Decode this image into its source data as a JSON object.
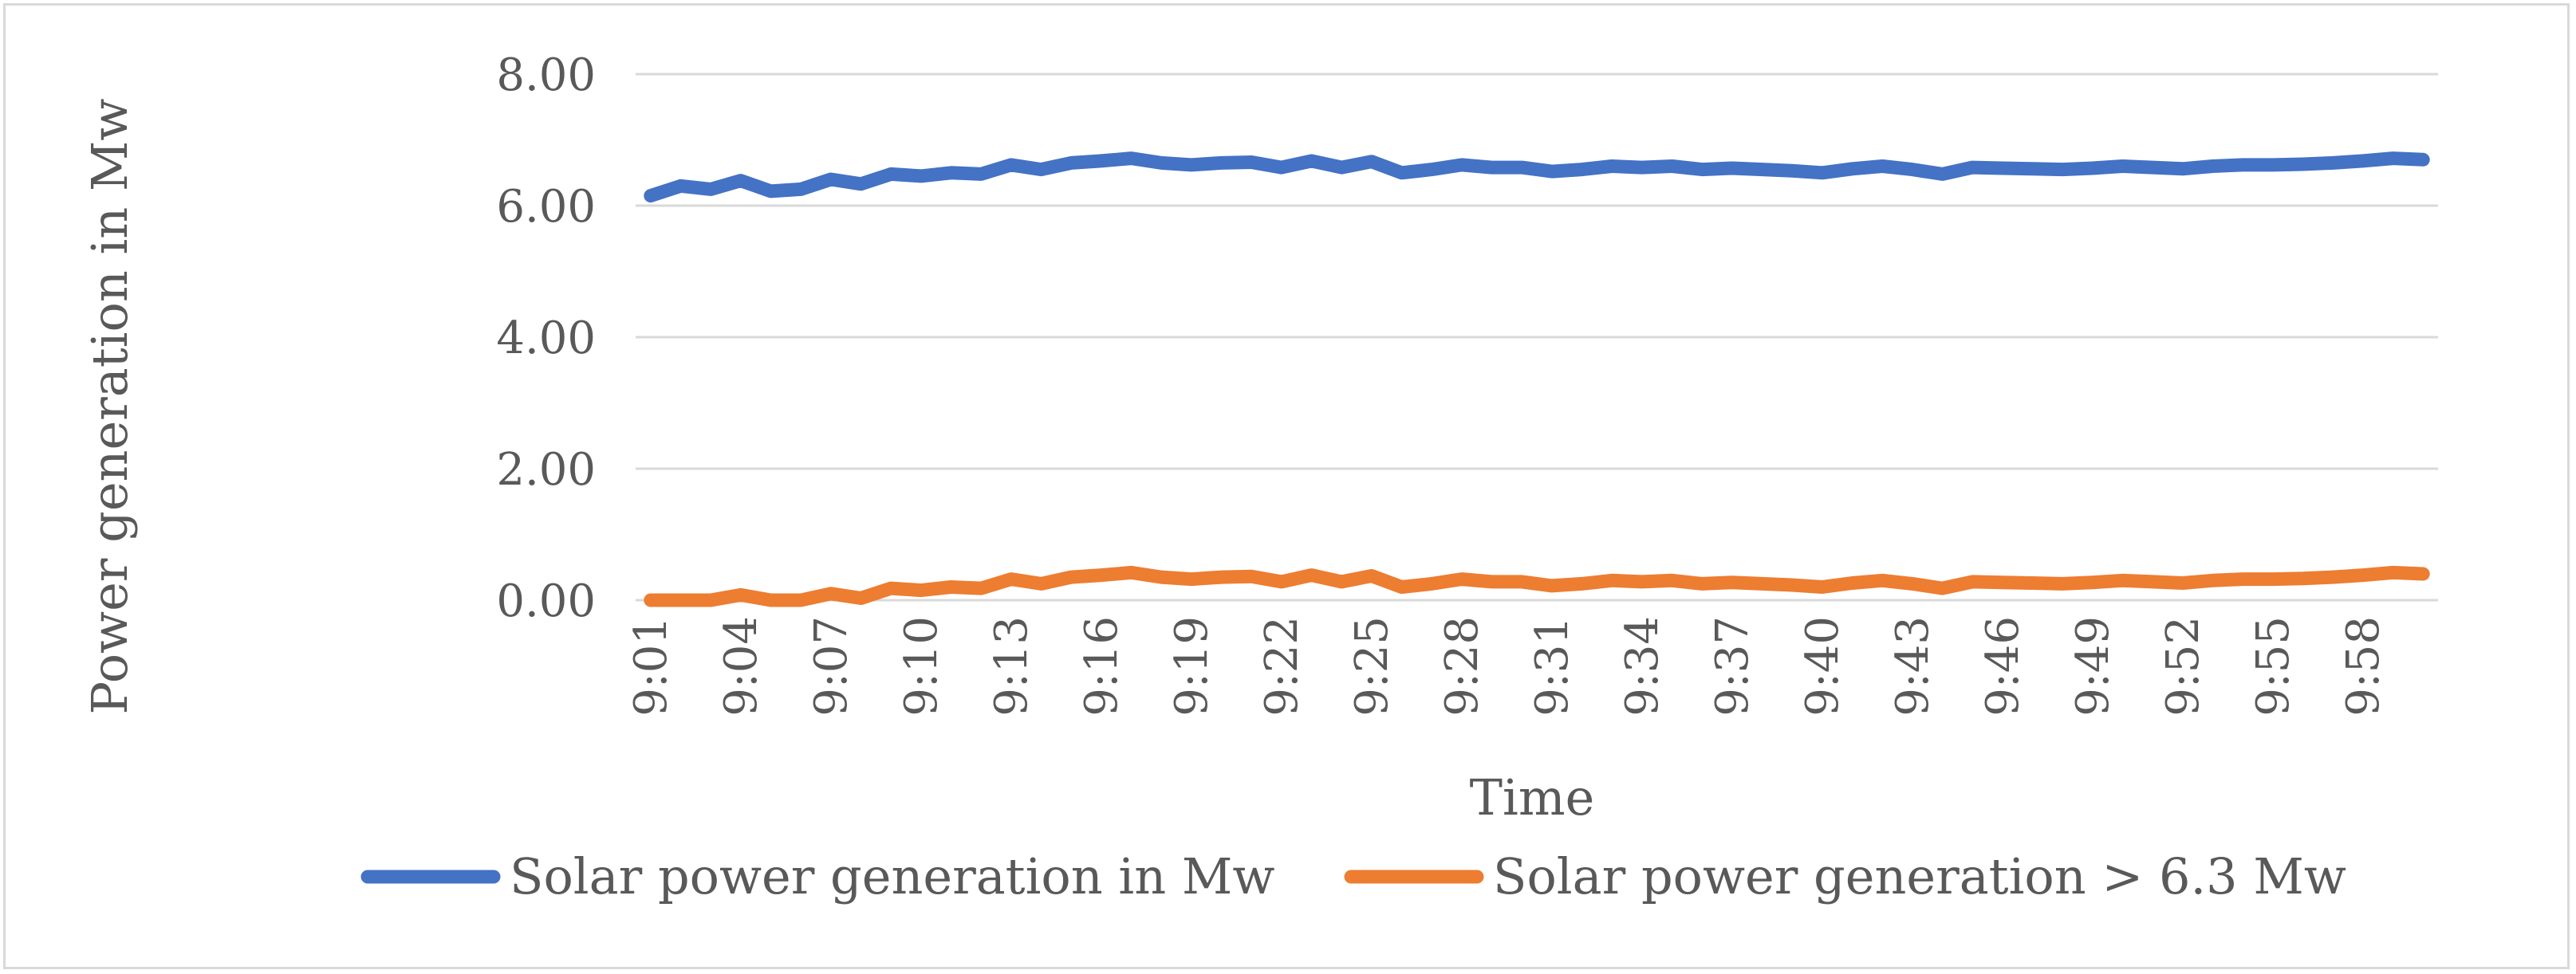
{
  "chart_data": {
    "type": "line",
    "title": "",
    "xlabel": "Time",
    "ylabel": "Power generation in Mw",
    "ylim": [
      0,
      8
    ],
    "yticks": [
      "0.00",
      "2.00",
      "4.00",
      "6.00",
      "8.00"
    ],
    "ytick_values": [
      0,
      2,
      4,
      6,
      8
    ],
    "grid": true,
    "legend_position": "bottom",
    "categories": [
      "9:01",
      "9:02",
      "9:03",
      "9:04",
      "9:05",
      "9:06",
      "9:07",
      "9:08",
      "9:09",
      "9:10",
      "9:11",
      "9:12",
      "9:13",
      "9:14",
      "9:15",
      "9:16",
      "9:17",
      "9:18",
      "9:19",
      "9:20",
      "9:21",
      "9:22",
      "9:23",
      "9:24",
      "9:25",
      "9:26",
      "9:27",
      "9:28",
      "9:29",
      "9:30",
      "9:31",
      "9:32",
      "9:33",
      "9:34",
      "9:35",
      "9:36",
      "9:37",
      "9:38",
      "9:39",
      "9:40",
      "9:41",
      "9:42",
      "9:43",
      "9:44",
      "9:45",
      "9:46",
      "9:47",
      "9:48",
      "9:49",
      "9:50",
      "9:51",
      "9:52",
      "9:53",
      "9:54",
      "9:55",
      "9:56",
      "9:57",
      "9:58",
      "9:59",
      "10:00"
    ],
    "shown_ticks": [
      "9:01",
      "9:04",
      "9:07",
      "9:10",
      "9:13",
      "9:16",
      "9:19",
      "9:22",
      "9:25",
      "9:28",
      "9:31",
      "9:34",
      "9:37",
      "9:40",
      "9:43",
      "9:46",
      "9:49",
      "9:52",
      "9:55",
      "9:58"
    ],
    "series": [
      {
        "name": "Solar power generation in Mw",
        "color": "#4472c4",
        "values": [
          6.15,
          6.3,
          6.25,
          6.38,
          6.22,
          6.25,
          6.4,
          6.33,
          6.48,
          6.45,
          6.5,
          6.48,
          6.62,
          6.55,
          6.65,
          6.68,
          6.72,
          6.65,
          6.62,
          6.65,
          6.66,
          6.58,
          6.68,
          6.58,
          6.67,
          6.5,
          6.55,
          6.62,
          6.58,
          6.58,
          6.52,
          6.55,
          6.6,
          6.58,
          6.6,
          6.55,
          6.57,
          6.55,
          6.53,
          6.5,
          6.56,
          6.6,
          6.55,
          6.48,
          6.58,
          6.57,
          6.56,
          6.55,
          6.57,
          6.6,
          6.58,
          6.56,
          6.6,
          6.62,
          6.62,
          6.63,
          6.65,
          6.68,
          6.72,
          6.7
        ]
      },
      {
        "name": "Solar power generation > 6.3 Mw",
        "color": "#ed7d31",
        "values": [
          0.0,
          0.0,
          0.0,
          0.08,
          0.0,
          0.0,
          0.1,
          0.03,
          0.18,
          0.15,
          0.2,
          0.18,
          0.32,
          0.25,
          0.35,
          0.38,
          0.42,
          0.35,
          0.32,
          0.35,
          0.36,
          0.28,
          0.38,
          0.28,
          0.37,
          0.2,
          0.25,
          0.32,
          0.28,
          0.28,
          0.22,
          0.25,
          0.3,
          0.28,
          0.3,
          0.25,
          0.27,
          0.25,
          0.23,
          0.2,
          0.26,
          0.3,
          0.25,
          0.18,
          0.28,
          0.27,
          0.26,
          0.25,
          0.27,
          0.3,
          0.28,
          0.26,
          0.3,
          0.32,
          0.32,
          0.33,
          0.35,
          0.38,
          0.42,
          0.4
        ]
      }
    ]
  }
}
